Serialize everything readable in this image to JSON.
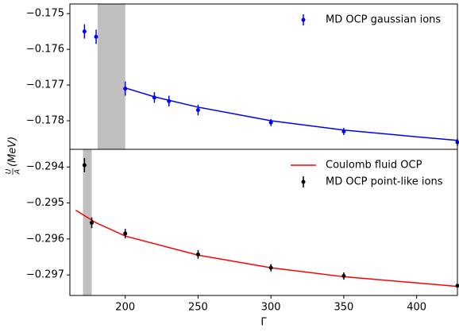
{
  "chart_data": [
    {
      "type": "errorbar",
      "ylim": [
        -0.1788,
        -0.17473
      ],
      "xlim": [
        162,
        428
      ],
      "yticks": [
        {
          "value": -0.175,
          "label": "−0.175"
        },
        {
          "value": -0.176,
          "label": "−0.176"
        },
        {
          "value": -0.177,
          "label": "−0.177"
        },
        {
          "value": -0.178,
          "label": "−0.178"
        }
      ],
      "shaded_region": [
        181,
        200
      ],
      "legend": "upper right",
      "series": [
        {
          "kind": "line",
          "color": "#0000ff",
          "x": [
            200,
            220,
            250,
            300,
            350,
            400,
            428
          ],
          "values": [
            -0.17708,
            -0.17733,
            -0.17762,
            -0.178,
            -0.17826,
            -0.17845,
            -0.17855
          ]
        },
        {
          "kind": "errorbar",
          "name": "MD OCP gaussian ions",
          "color": "#0000ff",
          "x": [
            172,
            180,
            200,
            220,
            230,
            250,
            300,
            350,
            428
          ],
          "values": [
            -0.1755,
            -0.17565,
            -0.1771,
            -0.17735,
            -0.17745,
            -0.1777,
            -0.17805,
            -0.1783,
            -0.1786
          ],
          "errors": [
            0.0002,
            0.0002,
            0.0002,
            0.00015,
            0.00015,
            0.00015,
            0.0001,
            0.0001,
            0.0001
          ]
        }
      ]
    },
    {
      "type": "errorbar",
      "ylim": [
        -0.29757,
        -0.29351
      ],
      "xlim": [
        162,
        428
      ],
      "yticks": [
        {
          "value": -0.294,
          "label": "−0.294"
        },
        {
          "value": -0.295,
          "label": "−0.295"
        },
        {
          "value": -0.296,
          "label": "−0.296"
        },
        {
          "value": -0.297,
          "label": "−0.297"
        }
      ],
      "xticks": [
        200,
        250,
        300,
        350,
        400
      ],
      "xlabel": "Γ",
      "ylabel": {
        "numerator": "U",
        "denominator": "A",
        "unit": "(MeV)"
      },
      "shaded_region": [
        171,
        177
      ],
      "legend": "upper right",
      "series": [
        {
          "kind": "line",
          "name": "Coulomb fluid OCP",
          "color": "#ff0000",
          "x": [
            166,
            180,
            200,
            250,
            300,
            350,
            400,
            428
          ],
          "values": [
            -0.2952,
            -0.29555,
            -0.29592,
            -0.29645,
            -0.2968,
            -0.29705,
            -0.29722,
            -0.29732
          ]
        },
        {
          "kind": "errorbar",
          "name": "MD OCP point-like ions",
          "color": "#000000",
          "x": [
            172,
            177,
            200,
            250,
            300,
            350,
            428
          ],
          "values": [
            -0.29395,
            -0.29555,
            -0.29585,
            -0.29643,
            -0.2968,
            -0.29703,
            -0.2973
          ],
          "errors": [
            0.0002,
            0.00015,
            0.00013,
            0.00012,
            0.0001,
            0.0001,
            5e-05
          ]
        }
      ]
    }
  ]
}
